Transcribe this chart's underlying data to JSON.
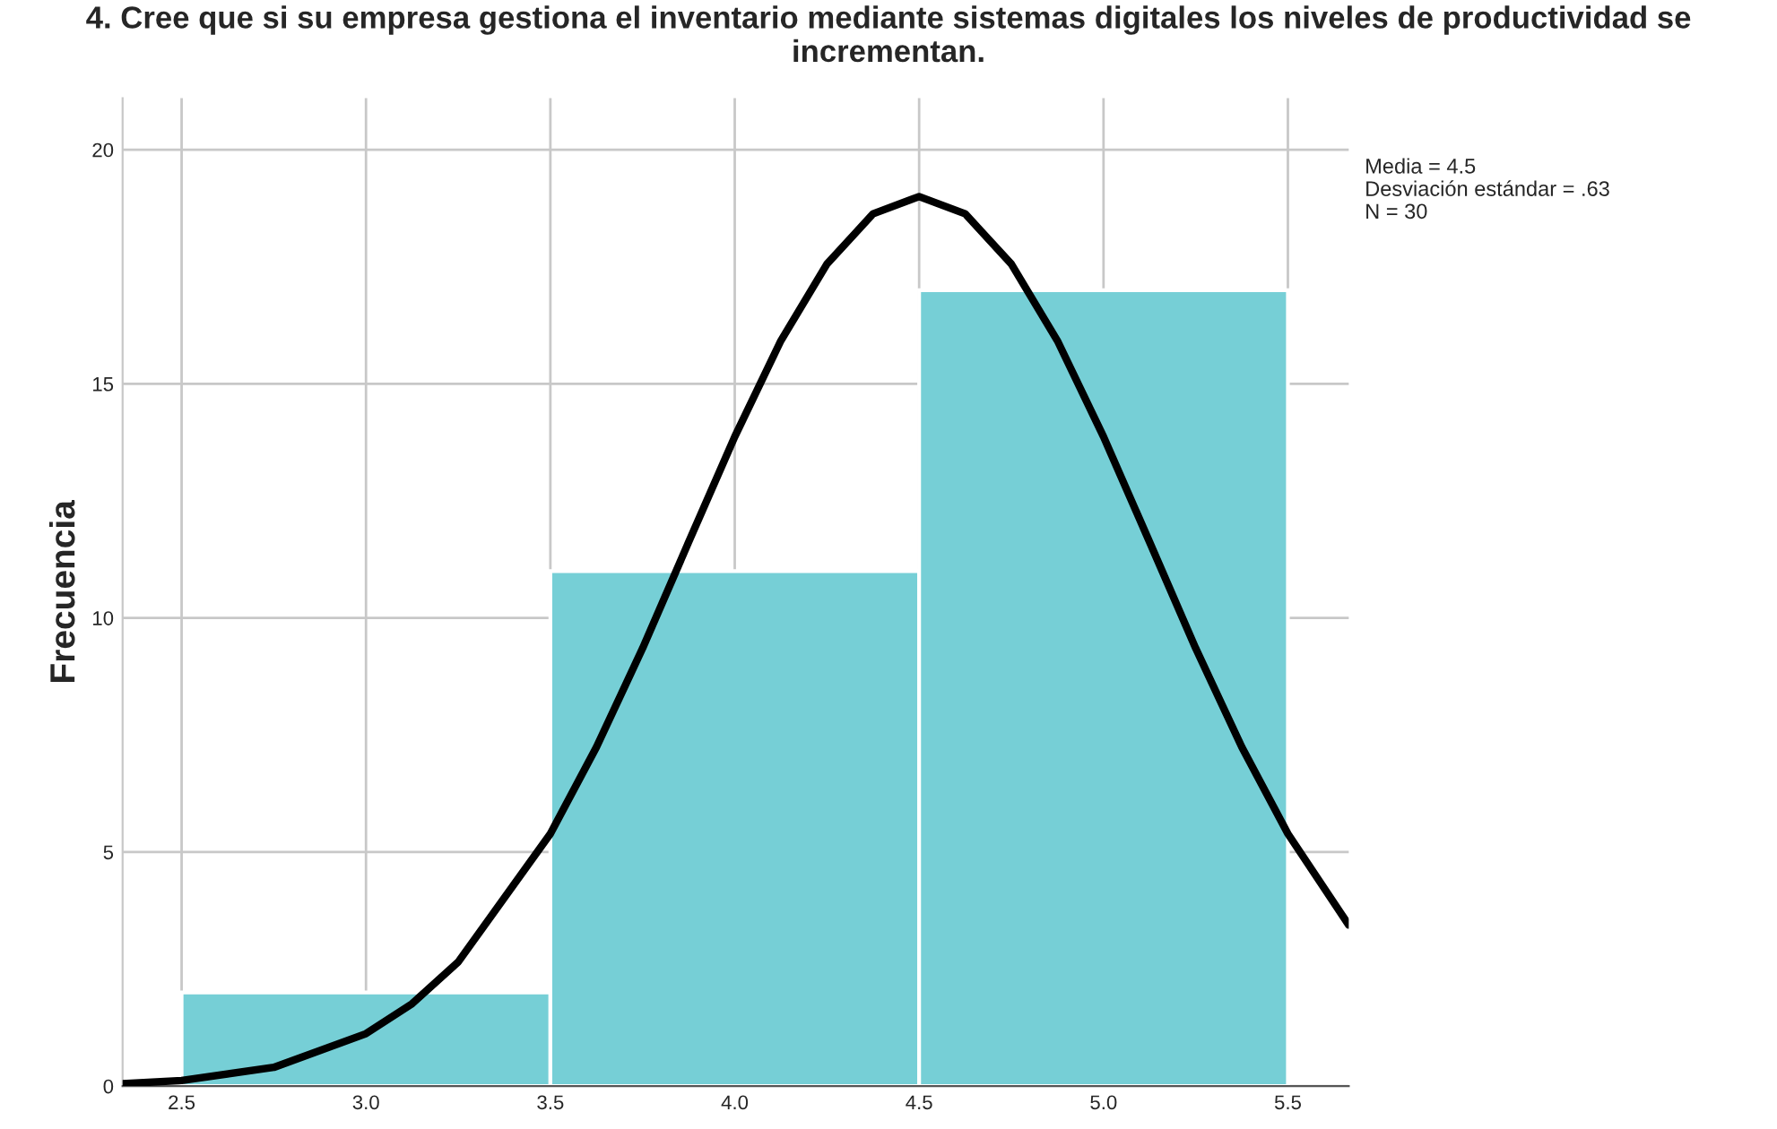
{
  "chart_data": {
    "type": "histogram",
    "title": "4. Cree que si su empresa gestiona el inventario mediante sistemas digitales los niveles de productividad se incrementan.",
    "ylabel": "Frecuencia",
    "bins": [
      2.5,
      3.5,
      4.5,
      5.5
    ],
    "values": [
      2,
      11,
      17
    ],
    "color": "#76cfd6",
    "series": [
      {
        "type": "line",
        "color": "#000000",
        "x": [
          2.34,
          2.5,
          2.75,
          3.0,
          3.125,
          3.25,
          3.5,
          3.625,
          3.75,
          3.875,
          4.0,
          4.125,
          4.25,
          4.375,
          4.5,
          4.625,
          4.75,
          4.875,
          5.0,
          5.125,
          5.25,
          5.375,
          5.5,
          5.665
        ],
        "values": [
          0.05,
          0.12,
          0.4,
          1.12,
          1.76,
          2.65,
          5.39,
          7.24,
          9.35,
          11.62,
          13.87,
          15.92,
          17.56,
          18.63,
          19.0,
          18.63,
          17.56,
          15.92,
          13.87,
          11.62,
          9.35,
          7.24,
          5.39,
          3.44
        ]
      }
    ],
    "xlim": [
      2.34,
      5.665
    ],
    "ylim": [
      0,
      21.1
    ],
    "xticks": [
      {
        "value": 2.5,
        "label": "2.5"
      },
      {
        "value": 3.0,
        "label": "3.0"
      },
      {
        "value": 3.5,
        "label": "3.5"
      },
      {
        "value": 4.0,
        "label": "4.0"
      },
      {
        "value": 4.5,
        "label": "4.5"
      },
      {
        "value": 5.0,
        "label": "5.0"
      },
      {
        "value": 5.5,
        "label": "5.5"
      }
    ],
    "yticks": [
      0,
      5,
      10,
      15,
      20
    ],
    "grid": true,
    "annotations": [
      "Media = 4.5",
      "Desviación estándar = .63",
      "N = 30"
    ]
  }
}
